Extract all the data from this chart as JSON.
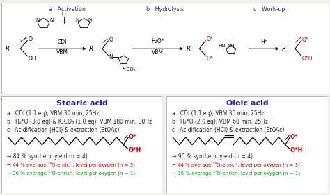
{
  "bg_color": "#f0f0eb",
  "top_panel_bg": "#ffffff",
  "bottom_bg": "#ffffff",
  "border_color": "#aaaaaa",
  "left_title": "Stearic acid",
  "right_title": "Oleic acid",
  "title_color": "#2222bb",
  "left_a": "a   CDI (1.1 eq); VBM 30 min, 25Hz",
  "left_b": "b   H₂*O (3.0 eq) & K₂CO₃ (1.0 eq); VBM 180 min, 30Hz",
  "left_c": "c   Acidification (HCl) & extraction (EtOAc)",
  "right_a": "a   CDI (1.1 eq); VBM 30 min, 25Hz",
  "right_b": "b   H₂*O (2.0 eq); VBM 60 min, 25Hz",
  "right_c": "c   Acidification (HCl) & extraction (EtOAc)",
  "left_yield": "→ 84 % synthetic yield (n = 4)",
  "right_yield": "→ 90 % synthetic yield (n = 4)",
  "both_18O": "→ 44 % average ¹⁸O-enrich. level per oxygen (n = 3)",
  "both_17O": "→ 36 % average ¹⁷O-enrich. level per oxygen (n = 1)",
  "yield_color": "#333333",
  "enrich18_color": "#cc0000",
  "enrich17_color": "#009900",
  "label_color": "#222222",
  "red_color": "#cc0000",
  "fs_tiny": 5.0,
  "fs_small": 5.8,
  "fs_med": 6.5,
  "fs_title": 8.0,
  "sec_a": "a   Activation",
  "sec_b": "b   Hydrolysis",
  "sec_c": "c   Work-up"
}
